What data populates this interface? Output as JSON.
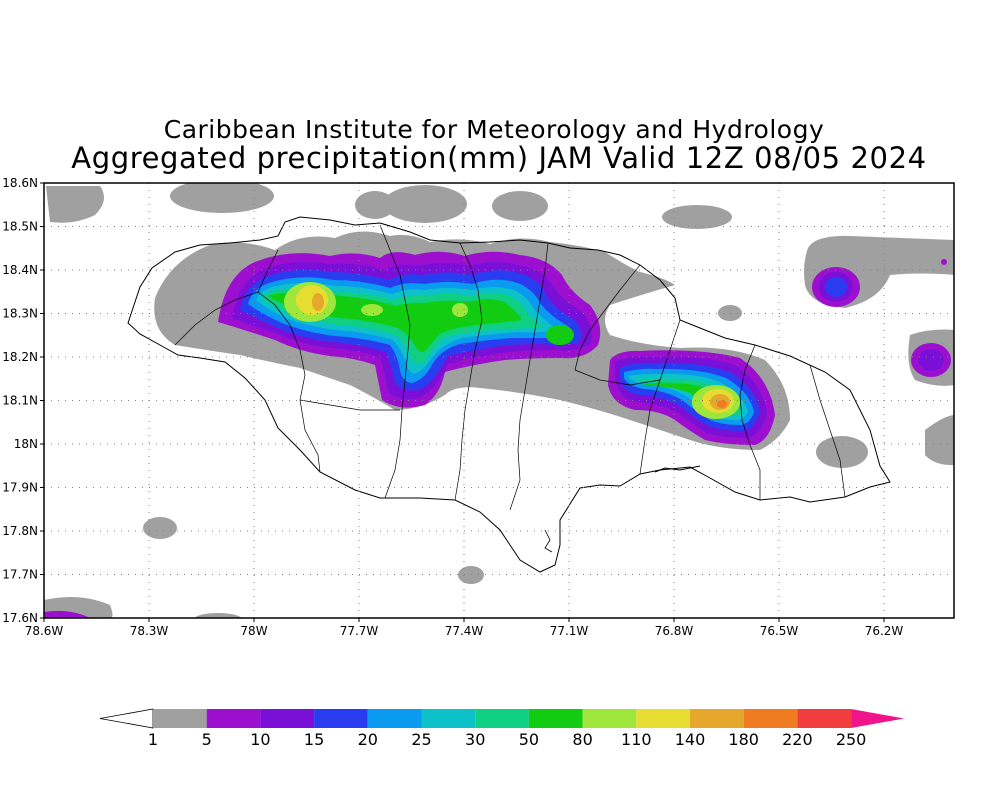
{
  "title_line1": "Caribbean Institute for Meteorology and Hydrology",
  "title_line2": "Aggregated precipitation(mm) JAM Valid 12Z 08/05 2024",
  "map": {
    "lon_range": [
      -78.6,
      -76.0
    ],
    "lat_range": [
      17.6,
      18.6
    ],
    "lat_labels": [
      "18.6N",
      "18.5N",
      "18.4N",
      "18.3N",
      "18.2N",
      "18.1N",
      "18N",
      "17.9N",
      "17.8N",
      "17.7N",
      "17.6N"
    ],
    "lon_labels": [
      "78.6W",
      "78.3W",
      "78W",
      "77.7W",
      "77.4W",
      "77.1W",
      "76.8W",
      "76.5W",
      "76.2W"
    ],
    "gridlines": "dotted"
  },
  "colorbar": {
    "labels": [
      "1",
      "5",
      "10",
      "15",
      "20",
      "25",
      "30",
      "50",
      "80",
      "110",
      "140",
      "180",
      "220",
      "250"
    ],
    "colors": [
      "#a0a0a0",
      "#9c0fcf",
      "#7a10d8",
      "#2a3cf0",
      "#0a9af0",
      "#0cc2c8",
      "#0fcf82",
      "#12cc12",
      "#9ee63c",
      "#e6dc32",
      "#e6a82c",
      "#f07c22",
      "#f03c3c",
      "#f0148c"
    ],
    "below_color": "#ffffff",
    "above_color": "#f0148c"
  }
}
